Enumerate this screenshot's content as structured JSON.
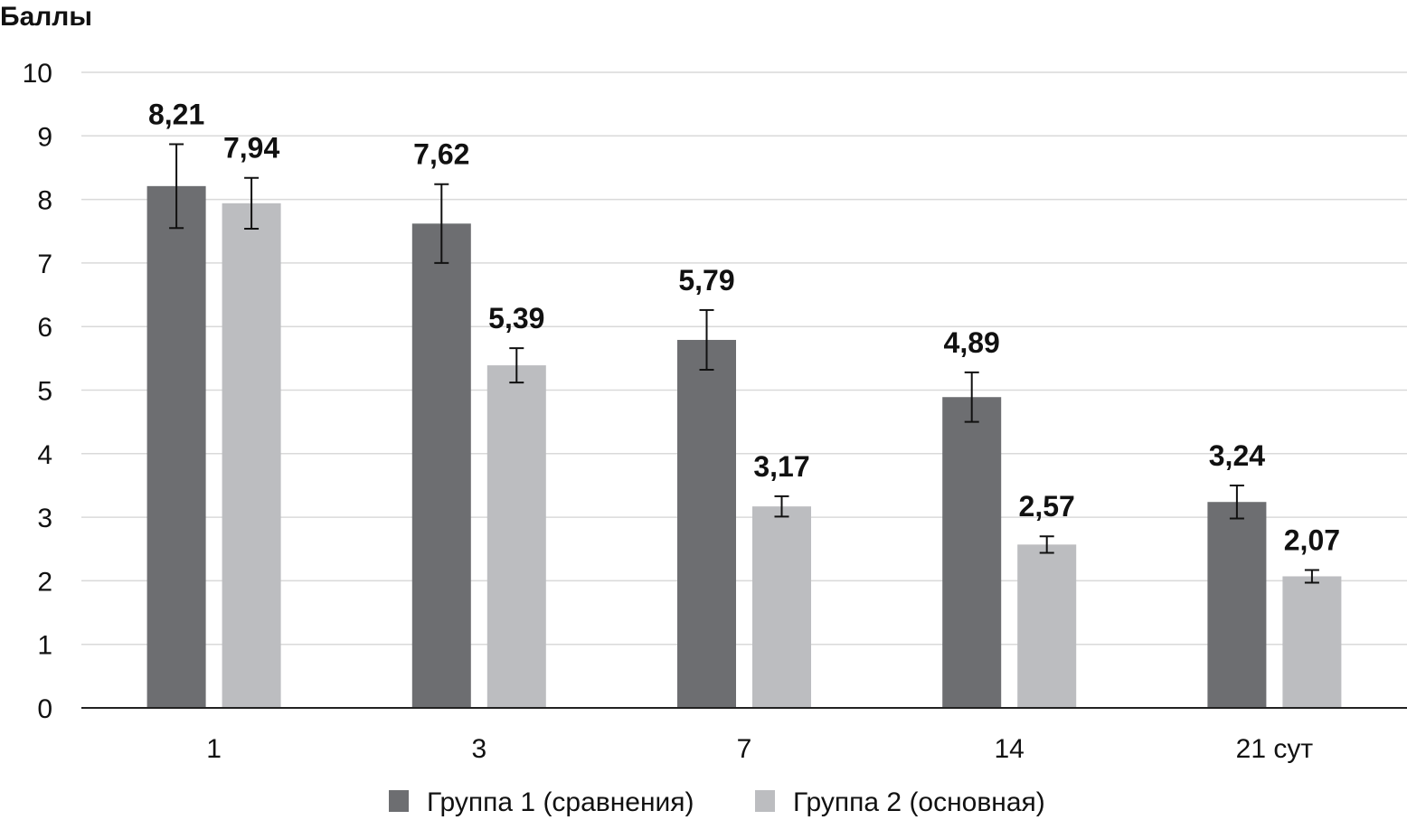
{
  "chart_data": {
    "type": "bar",
    "ylabel": "Баллы",
    "ylim": [
      0,
      10
    ],
    "yticks": [
      "0",
      "1",
      "2",
      "3",
      "4",
      "5",
      "6",
      "7",
      "8",
      "9",
      "10"
    ],
    "categories": [
      "1",
      "3",
      "7",
      "14",
      "21 сут"
    ],
    "series": [
      {
        "name": "Группа 1 (сравнения)",
        "color": "#6d6e71",
        "values": [
          8.21,
          7.62,
          5.79,
          4.89,
          3.24
        ],
        "labels": [
          "8,21",
          "7,62",
          "5,79",
          "4,89",
          "3,24"
        ],
        "error": [
          0.66,
          0.62,
          0.47,
          0.39,
          0.26
        ]
      },
      {
        "name": "Группа 2 (основная)",
        "color": "#bcbdc0",
        "values": [
          7.94,
          5.39,
          3.17,
          2.57,
          2.07
        ],
        "labels": [
          "7,94",
          "5,39",
          "3,17",
          "2,57",
          "2,07"
        ],
        "error": [
          0.4,
          0.27,
          0.16,
          0.13,
          0.1
        ]
      }
    ],
    "grid": true,
    "legend": "bottom"
  }
}
